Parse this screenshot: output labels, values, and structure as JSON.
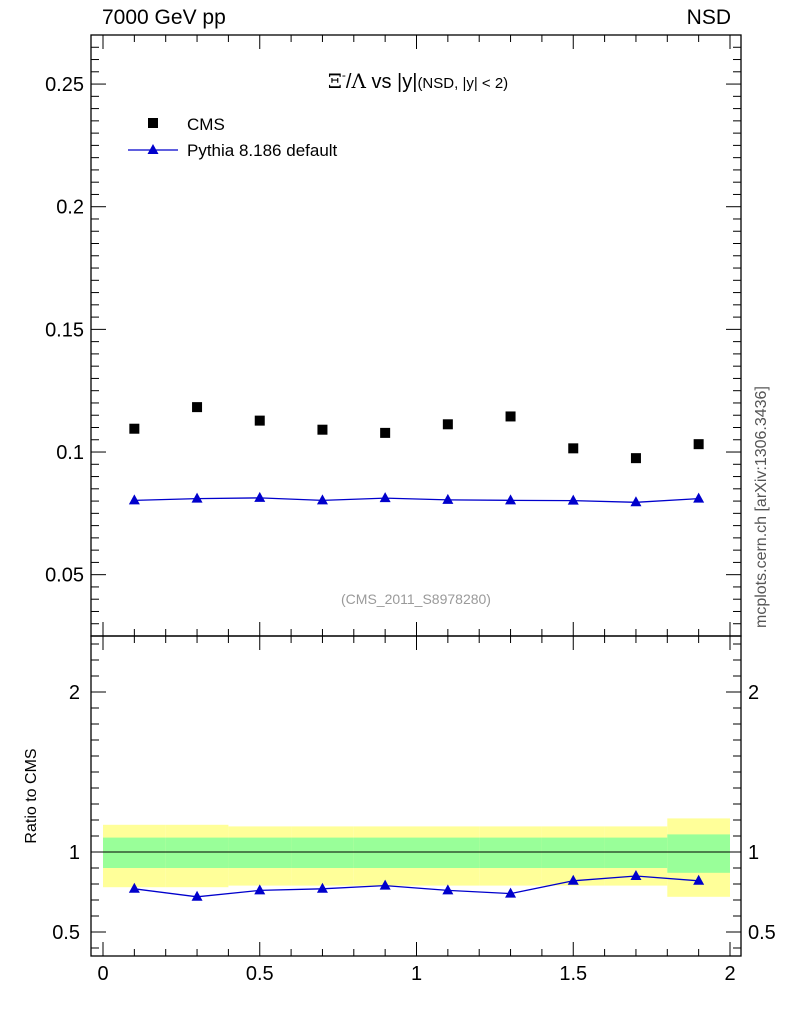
{
  "header": {
    "left": "7000 GeV pp",
    "right": "NSD"
  },
  "side_label": "mcplots.cern.ch [arXiv:1306.3436]",
  "chart_data": [
    {
      "type": "scatter",
      "title_parts": {
        "symbol": "Ξ",
        "superscript": "-",
        "slash": "/",
        "lambda": "Λ",
        "vs": " vs ",
        "var": "|y|",
        "cond": "(NSD, |y| < 2)"
      },
      "watermark": "(CMS_2011_S8978280)",
      "xlim": [
        0,
        2
      ],
      "ylim": [
        0.025,
        0.27
      ],
      "yticks": [
        "0.05",
        "0.1",
        "0.15",
        "0.2",
        "0.25"
      ],
      "x": [
        0.1,
        0.3,
        0.5,
        0.7,
        0.9,
        1.1,
        1.3,
        1.5,
        1.7,
        1.9
      ],
      "series": [
        {
          "name": "CMS",
          "marker": "square",
          "color": "#000000",
          "values": [
            0.1095,
            0.1183,
            0.1128,
            0.1091,
            0.1078,
            0.1113,
            0.1145,
            0.1015,
            0.0975,
            0.1032
          ]
        },
        {
          "name": "Pythia 8.186 default",
          "marker": "triangle",
          "color": "#0000cc",
          "line": true,
          "values": [
            0.0803,
            0.081,
            0.0813,
            0.0803,
            0.0812,
            0.0805,
            0.0803,
            0.0802,
            0.0795,
            0.081
          ]
        }
      ]
    },
    {
      "type": "line",
      "ylabel": "Ratio to CMS",
      "xlim": [
        0,
        2
      ],
      "ylim": [
        0.35,
        2.35
      ],
      "xticks": [
        "0",
        "0.5",
        "1",
        "1.5",
        "2"
      ],
      "yticks": [
        "0.5",
        "1",
        "2"
      ],
      "reference": 1.0,
      "bands": {
        "edges": [
          0,
          0.2,
          0.4,
          0.6,
          0.8,
          1.0,
          1.2,
          1.4,
          1.6,
          1.8,
          2.0
        ],
        "yellow": [
          [
            0.78,
            1.17
          ],
          [
            0.78,
            1.17
          ],
          [
            0.79,
            1.16
          ],
          [
            0.79,
            1.16
          ],
          [
            0.79,
            1.16
          ],
          [
            0.79,
            1.16
          ],
          [
            0.79,
            1.16
          ],
          [
            0.79,
            1.16
          ],
          [
            0.79,
            1.16
          ],
          [
            0.72,
            1.21
          ]
        ],
        "green": [
          [
            0.9,
            1.09
          ],
          [
            0.9,
            1.09
          ],
          [
            0.9,
            1.09
          ],
          [
            0.9,
            1.09
          ],
          [
            0.9,
            1.09
          ],
          [
            0.9,
            1.09
          ],
          [
            0.9,
            1.09
          ],
          [
            0.9,
            1.09
          ],
          [
            0.9,
            1.09
          ],
          [
            0.87,
            1.11
          ]
        ]
      },
      "series": [
        {
          "name": "Pythia 8.186 default",
          "marker": "triangle",
          "color": "#0000cc",
          "values": [
            0.77,
            0.72,
            0.76,
            0.77,
            0.79,
            0.76,
            0.74,
            0.82,
            0.85,
            0.82
          ]
        }
      ]
    }
  ]
}
